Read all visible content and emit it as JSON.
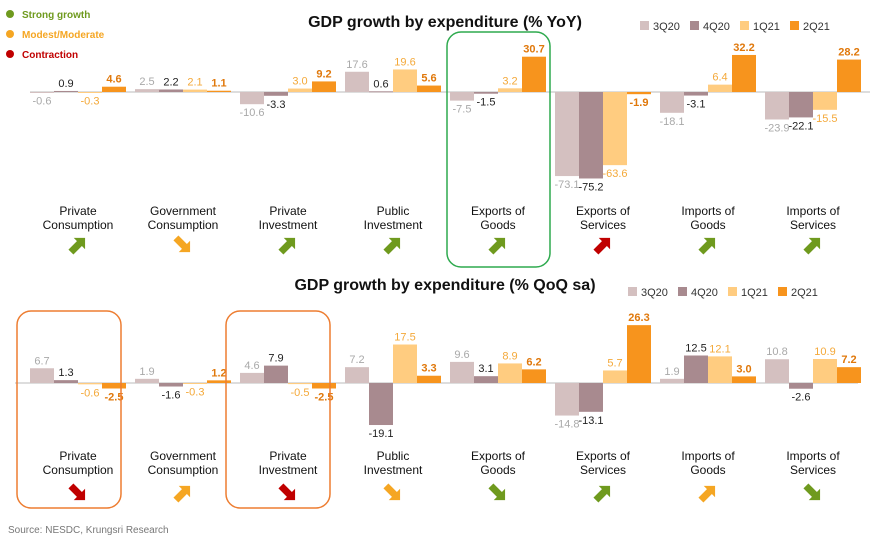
{
  "status_legend": [
    {
      "label": "Strong growth",
      "color": "#6f9a1e"
    },
    {
      "label": "Modest/Moderate",
      "color": "#f5a623"
    },
    {
      "label": "Contraction",
      "color": "#c00000"
    }
  ],
  "source": "Source: NESDC, Krungsri Research",
  "chart_data": [
    {
      "type": "bar",
      "title": "GDP growth by expenditure (% YoY)",
      "categories": [
        "Private Consumption",
        "Government Consumption",
        "Private Investment",
        "Public Investment",
        "Exports of Goods",
        "Exports of Services",
        "Imports of Goods",
        "Imports of Services"
      ],
      "category_lines": [
        [
          "Private",
          "Consumption"
        ],
        [
          "Government",
          "Consumption"
        ],
        [
          "Private",
          "Investment"
        ],
        [
          "Public",
          "Investment"
        ],
        [
          "Exports of",
          "Goods"
        ],
        [
          "Exports of",
          "Services"
        ],
        [
          "Imports of",
          "Goods"
        ],
        [
          "Imports of",
          "Services"
        ]
      ],
      "series": [
        {
          "name": "3Q20",
          "color": "#d4c0c0",
          "label_color": "#a9a9a9",
          "values": [
            -0.6,
            2.5,
            -10.6,
            17.6,
            -7.5,
            -73.1,
            -18.1,
            -23.9
          ]
        },
        {
          "name": "4Q20",
          "color": "#a88a8f",
          "label_color": "#222222",
          "values": [
            0.9,
            2.2,
            -3.3,
            0.6,
            -1.5,
            -75.2,
            -3.1,
            -22.1
          ]
        },
        {
          "name": "1Q21",
          "color": "#ffcc80",
          "label_color": "#f4a93a",
          "values": [
            -0.3,
            2.1,
            3.0,
            19.6,
            3.2,
            -63.6,
            6.4,
            -15.5
          ]
        },
        {
          "name": "2Q21",
          "color": "#f7941d",
          "label_color": "#e0780b",
          "values": [
            4.6,
            1.1,
            9.2,
            5.6,
            30.7,
            -1.9,
            32.2,
            28.2
          ]
        }
      ],
      "status": [
        "strong",
        "moderate",
        "strong",
        "strong",
        "strong",
        "contraction",
        "strong",
        "strong"
      ],
      "status_icons": [
        "up-arrow-icon",
        "down-arrow-icon",
        "up-arrow-icon",
        "up-arrow-icon",
        "up-arrow-icon",
        "up-arrow-icon",
        "up-arrow-icon",
        "up-arrow-icon"
      ],
      "highlight_categories": [
        "Exports of Goods"
      ],
      "highlight_color": "#2eaa4e",
      "legend_position": "top-right"
    },
    {
      "type": "bar",
      "title": "GDP growth by expenditure (% QoQ sa)",
      "categories": [
        "Private Consumption",
        "Government Consumption",
        "Private Investment",
        "Public Investment",
        "Exports of Goods",
        "Exports of Services",
        "Imports of Goods",
        "Imports of Services"
      ],
      "category_lines": [
        [
          "Private",
          "Consumption"
        ],
        [
          "Government",
          "Consumption"
        ],
        [
          "Private",
          "Investment"
        ],
        [
          "Public",
          "Investment"
        ],
        [
          "Exports of",
          "Goods"
        ],
        [
          "Exports of",
          "Services"
        ],
        [
          "Imports of",
          "Goods"
        ],
        [
          "Imports of",
          "Services"
        ]
      ],
      "series": [
        {
          "name": "3Q20",
          "color": "#d4c0c0",
          "label_color": "#a9a9a9",
          "values": [
            6.7,
            1.9,
            4.6,
            7.2,
            9.6,
            -14.8,
            1.9,
            10.8
          ]
        },
        {
          "name": "4Q20",
          "color": "#a88a8f",
          "label_color": "#222222",
          "values": [
            1.3,
            -1.6,
            7.9,
            -19.1,
            3.1,
            -13.1,
            12.5,
            -2.6
          ]
        },
        {
          "name": "1Q21",
          "color": "#ffcc80",
          "label_color": "#f4a93a",
          "values": [
            -0.6,
            -0.3,
            -0.5,
            17.5,
            8.9,
            5.7,
            12.1,
            10.9
          ]
        },
        {
          "name": "2Q21",
          "color": "#f7941d",
          "label_color": "#e0780b",
          "values": [
            -2.5,
            1.2,
            -2.5,
            3.3,
            6.2,
            26.3,
            3.0,
            7.2
          ]
        }
      ],
      "status": [
        "contraction",
        "moderate",
        "contraction",
        "moderate",
        "strong",
        "strong",
        "moderate",
        "strong"
      ],
      "status_icons": [
        "down-arrow-icon",
        "up-arrow-icon",
        "down-arrow-icon",
        "down-arrow-icon",
        "down-arrow-icon",
        "up-arrow-icon",
        "up-arrow-icon",
        "down-arrow-icon"
      ],
      "highlight_categories": [
        "Private Consumption",
        "Private Investment"
      ],
      "highlight_color": "#ed7d31",
      "legend_position": "top-right"
    }
  ]
}
